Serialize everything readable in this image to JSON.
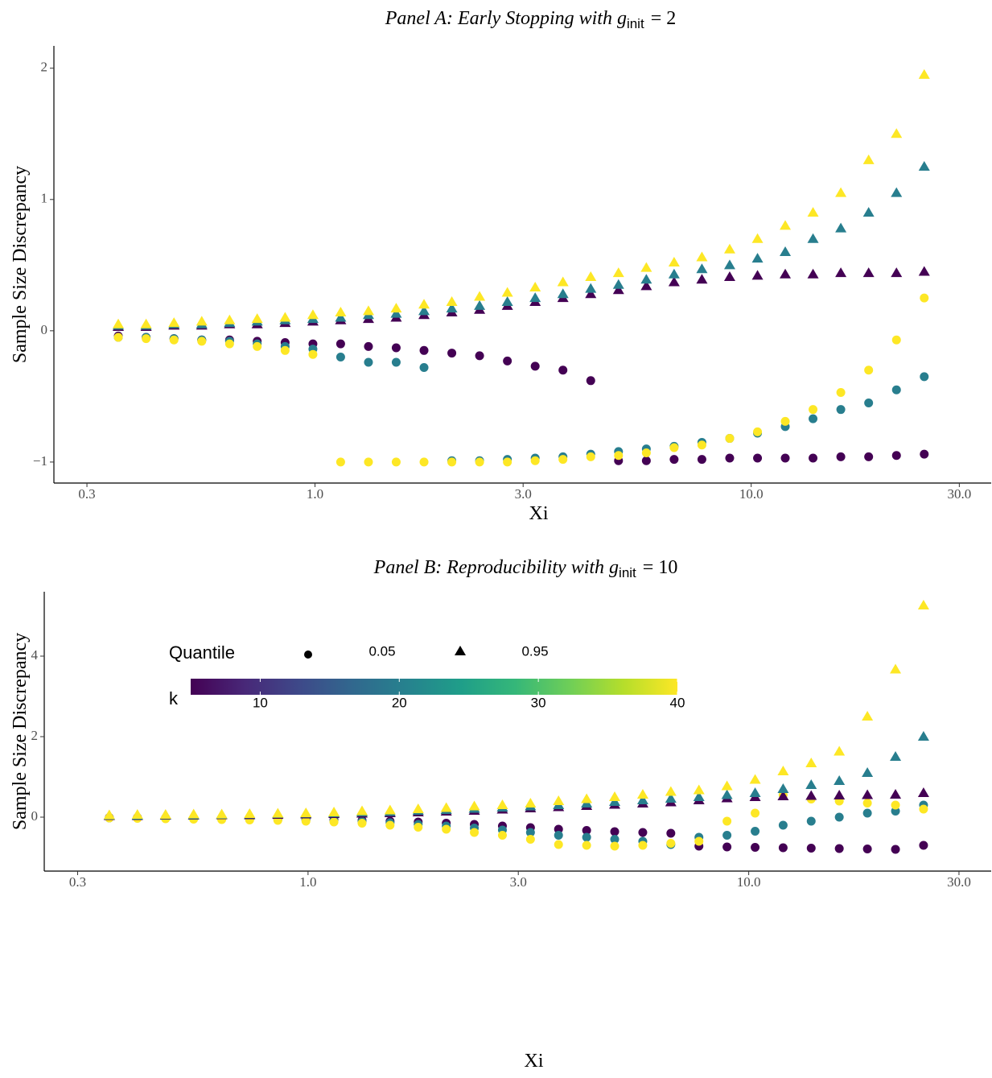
{
  "chart_data": [
    {
      "type": "scatter",
      "title": "Panel A: Early Stopping with",
      "title_symbol": "g",
      "title_subscript": "init",
      "title_value": "= 2",
      "x_label": "Xi",
      "y_label": "Sample Size Discrepancy",
      "log_x": true,
      "xlim": [
        0.252,
        35.5
      ],
      "ylim": [
        -1.16,
        2.17
      ],
      "xticks": [
        0.3,
        {
          "value": 1,
          "label": "1.0"
        },
        {
          "value": 3,
          "label": "3.0"
        },
        {
          "value": 10,
          "label": "10.0"
        },
        {
          "value": 30,
          "label": "30.0"
        }
      ],
      "yticks": [
        {
          "value": -1,
          "label": "−1"
        },
        0,
        1,
        2
      ],
      "x": [
        0.354,
        0.41,
        0.475,
        0.55,
        0.637,
        0.737,
        0.854,
        0.989,
        1.145,
        1.326,
        1.535,
        1.778,
        2.059,
        2.384,
        2.761,
        3.197,
        3.702,
        4.287,
        4.964,
        5.749,
        6.657,
        7.709,
        8.927,
        10.34,
        11.97,
        13.86,
        16.05,
        18.59,
        21.53,
        24.93
      ],
      "series": [
        {
          "shape": "circle",
          "k": 5,
          "values": [
            -0.04,
            -0.05,
            -0.06,
            -0.07,
            -0.07,
            -0.08,
            -0.09,
            -0.1,
            -0.1,
            -0.12,
            -0.13,
            -0.15,
            -0.17,
            -0.19,
            -0.23,
            -0.27,
            -0.3,
            -0.38,
            -0.99,
            -0.99,
            -0.98,
            -0.98,
            -0.97,
            -0.97,
            -0.97,
            -0.97,
            -0.96,
            -0.96,
            -0.95,
            -0.94
          ]
        },
        {
          "shape": "circle",
          "k": 20,
          "values": [
            -0.05,
            -0.05,
            -0.06,
            -0.07,
            -0.08,
            -0.1,
            -0.12,
            -0.14,
            -0.2,
            -0.24,
            -0.24,
            -0.28,
            -0.99,
            -0.99,
            -0.98,
            -0.97,
            -0.96,
            -0.94,
            -0.92,
            -0.9,
            -0.88,
            -0.85,
            -0.82,
            -0.78,
            -0.73,
            -0.67,
            -0.6,
            -0.55,
            -0.45,
            -0.35
          ]
        },
        {
          "shape": "circle",
          "k": 40,
          "values": [
            -0.05,
            -0.06,
            -0.07,
            -0.08,
            -0.1,
            -0.12,
            -0.15,
            -0.18,
            -1.0,
            -1.0,
            -1.0,
            -1.0,
            -1.0,
            -1.0,
            -1.0,
            -0.99,
            -0.98,
            -0.96,
            -0.95,
            -0.93,
            -0.89,
            -0.87,
            -0.82,
            -0.77,
            -0.69,
            -0.6,
            -0.47,
            -0.3,
            -0.07,
            0.25
          ]
        },
        {
          "shape": "triangle",
          "k": 5,
          "values": [
            0.03,
            0.03,
            0.04,
            0.04,
            0.05,
            0.05,
            0.06,
            0.07,
            0.08,
            0.09,
            0.1,
            0.12,
            0.14,
            0.16,
            0.19,
            0.22,
            0.25,
            0.28,
            0.31,
            0.34,
            0.37,
            0.39,
            0.41,
            0.42,
            0.43,
            0.43,
            0.44,
            0.44,
            0.44,
            0.45
          ]
        },
        {
          "shape": "triangle",
          "k": 20,
          "values": [
            0.04,
            0.04,
            0.05,
            0.05,
            0.06,
            0.07,
            0.08,
            0.09,
            0.1,
            0.12,
            0.13,
            0.15,
            0.17,
            0.19,
            0.22,
            0.25,
            0.28,
            0.32,
            0.35,
            0.39,
            0.43,
            0.47,
            0.5,
            0.55,
            0.6,
            0.7,
            0.78,
            0.9,
            1.05,
            1.25
          ]
        },
        {
          "shape": "triangle",
          "k": 40,
          "values": [
            0.05,
            0.05,
            0.06,
            0.07,
            0.08,
            0.09,
            0.1,
            0.12,
            0.14,
            0.15,
            0.17,
            0.2,
            0.22,
            0.26,
            0.29,
            0.33,
            0.37,
            0.41,
            0.44,
            0.48,
            0.52,
            0.56,
            0.62,
            0.7,
            0.8,
            0.9,
            1.05,
            1.3,
            1.5,
            1.95
          ]
        }
      ]
    },
    {
      "type": "scatter",
      "title": "Panel B: Reproducibility with",
      "title_symbol": "g",
      "title_subscript": "init",
      "title_value": "= 10",
      "x_label": "Xi",
      "y_label": "Sample Size Discrepancy",
      "log_x": true,
      "xlim": [
        0.252,
        35.5
      ],
      "ylim": [
        -1.34,
        5.6
      ],
      "xticks": [
        0.3,
        {
          "value": 1,
          "label": "1.0"
        },
        {
          "value": 3,
          "label": "3.0"
        },
        {
          "value": 10,
          "label": "10.0"
        },
        {
          "value": 30,
          "label": "30.0"
        }
      ],
      "yticks": [
        0,
        2,
        4
      ],
      "x": [
        0.354,
        0.41,
        0.475,
        0.55,
        0.637,
        0.737,
        0.854,
        0.989,
        1.145,
        1.326,
        1.535,
        1.778,
        2.059,
        2.384,
        2.761,
        3.197,
        3.702,
        4.287,
        4.964,
        5.749,
        6.657,
        7.709,
        8.927,
        10.34,
        11.97,
        13.86,
        16.05,
        18.59,
        21.53,
        24.93
      ],
      "series": [
        {
          "shape": "circle",
          "k": 5,
          "values": [
            -0.01,
            -0.01,
            -0.02,
            -0.02,
            -0.03,
            -0.03,
            -0.04,
            -0.05,
            -0.06,
            -0.08,
            -0.1,
            -0.12,
            -0.15,
            -0.18,
            -0.22,
            -0.26,
            -0.3,
            -0.33,
            -0.36,
            -0.38,
            -0.4,
            -0.72,
            -0.74,
            -0.75,
            -0.76,
            -0.77,
            -0.78,
            -0.79,
            -0.8,
            -0.7
          ]
        },
        {
          "shape": "circle",
          "k": 20,
          "values": [
            -0.02,
            -0.02,
            -0.03,
            -0.03,
            -0.04,
            -0.05,
            -0.06,
            -0.07,
            -0.09,
            -0.11,
            -0.14,
            -0.18,
            -0.22,
            -0.27,
            -0.32,
            -0.38,
            -0.45,
            -0.5,
            -0.55,
            -0.6,
            -0.68,
            -0.5,
            -0.45,
            -0.35,
            -0.2,
            -0.1,
            0,
            0.1,
            0.15,
            0.3
          ]
        },
        {
          "shape": "circle",
          "k": 40,
          "values": [
            -0.02,
            -0.03,
            -0.04,
            -0.05,
            -0.06,
            -0.07,
            -0.08,
            -0.1,
            -0.12,
            -0.15,
            -0.2,
            -0.25,
            -0.3,
            -0.38,
            -0.45,
            -0.55,
            -0.68,
            -0.7,
            -0.72,
            -0.7,
            -0.65,
            -0.6,
            -0.1,
            0.1,
            0.55,
            0.45,
            0.4,
            0.35,
            0.3,
            0.2
          ]
        },
        {
          "shape": "triangle",
          "k": 5,
          "values": [
            0.03,
            0.03,
            0.04,
            0.04,
            0.05,
            0.05,
            0.06,
            0.07,
            0.08,
            0.09,
            0.1,
            0.12,
            0.14,
            0.16,
            0.19,
            0.22,
            0.25,
            0.28,
            0.31,
            0.34,
            0.37,
            0.42,
            0.47,
            0.5,
            0.52,
            0.53,
            0.54,
            0.55,
            0.56,
            0.6
          ]
        },
        {
          "shape": "triangle",
          "k": 20,
          "values": [
            0.04,
            0.04,
            0.05,
            0.05,
            0.06,
            0.07,
            0.08,
            0.09,
            0.1,
            0.12,
            0.13,
            0.16,
            0.18,
            0.21,
            0.24,
            0.27,
            0.3,
            0.34,
            0.38,
            0.42,
            0.46,
            0.5,
            0.55,
            0.6,
            0.7,
            0.8,
            0.9,
            1.1,
            1.5,
            2.0
          ]
        },
        {
          "shape": "triangle",
          "k": 40,
          "values": [
            0.05,
            0.06,
            0.06,
            0.07,
            0.07,
            0.08,
            0.09,
            0.1,
            0.12,
            0.15,
            0.17,
            0.2,
            0.23,
            0.27,
            0.3,
            0.34,
            0.4,
            0.45,
            0.5,
            0.56,
            0.63,
            0.67,
            0.77,
            0.93,
            1.14,
            1.34,
            1.63,
            2.5,
            3.67,
            5.26
          ]
        }
      ],
      "legend": {
        "title": "Quantile",
        "entries": [
          {
            "label": "0.05",
            "shape": "circle"
          },
          {
            "label": "0.95",
            "shape": "triangle"
          }
        ],
        "colorbar": {
          "title": "k",
          "lim": [
            5,
            40
          ],
          "ticks": [
            10,
            20,
            30,
            40
          ],
          "colors": [
            "#440154",
            "#482878",
            "#3e4989",
            "#31688e",
            "#26828e",
            "#1f9e89",
            "#35b779",
            "#6ece58",
            "#b5de2b",
            "#fde725"
          ]
        }
      }
    }
  ]
}
